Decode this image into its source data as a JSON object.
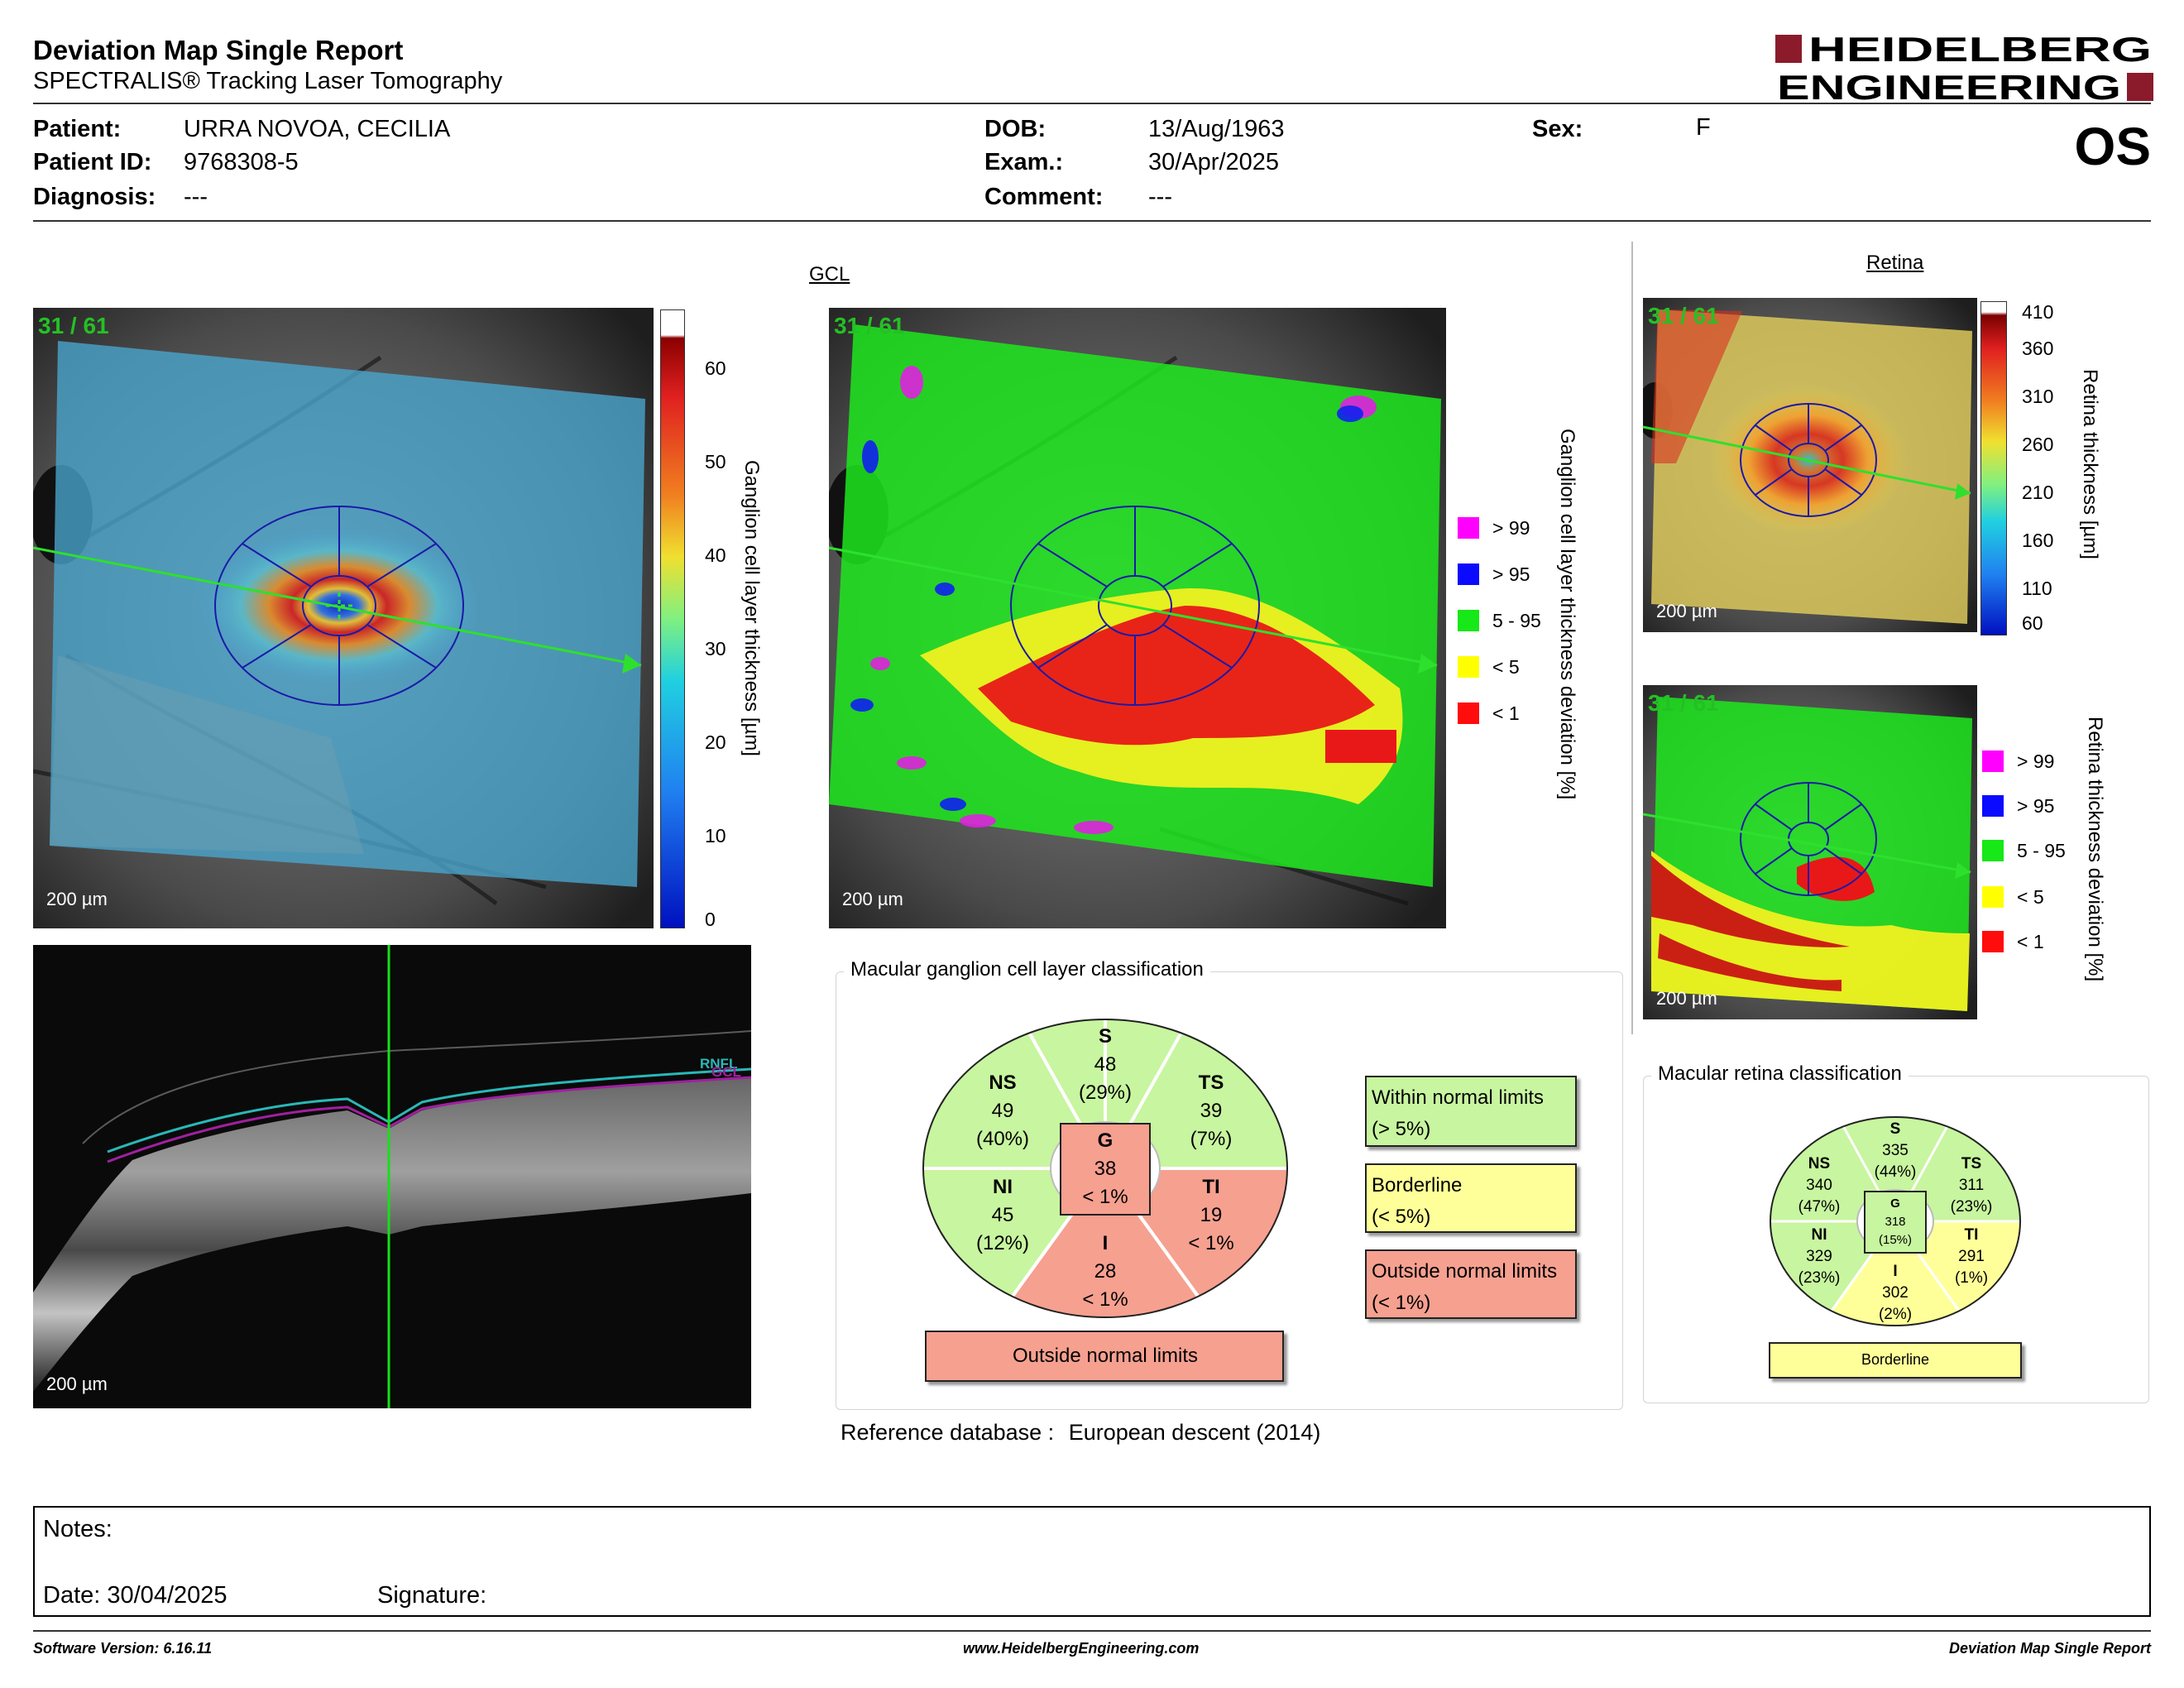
{
  "header": {
    "title": "Deviation Map Single Report",
    "subtitle": "SPECTRALIS® Tracking Laser Tomography",
    "logo_line1": "HEIDELBERG",
    "logo_line2": "ENGINEERING",
    "eye": "OS"
  },
  "patient": {
    "patient_label": "Patient:",
    "patient_value": "URRA NOVOA, CECILIA",
    "id_label": "Patient ID:",
    "id_value": "9768308-5",
    "diag_label": "Diagnosis:",
    "diag_value": "---",
    "dob_label": "DOB:",
    "dob_value": "13/Aug/1963",
    "exam_label": "Exam.:",
    "exam_value": "30/Apr/2025",
    "comment_label": "Comment:",
    "comment_value": "---",
    "sex_label": "Sex:",
    "sex_value": "F"
  },
  "images": {
    "frame_count": "31 / 61",
    "scale": "200 µm",
    "gcl_heading": "GCL",
    "retina_heading": "Retina",
    "bscan_layers": [
      "RNFL",
      "GCL"
    ]
  },
  "colorbars": {
    "gcl_thickness": {
      "label": "Ganglion cell layer thickness [µm]",
      "ticks": [
        "60",
        "50",
        "40",
        "30",
        "20",
        "10",
        "0"
      ]
    },
    "gcl_deviation": {
      "label": "Ganglion cell layer thickness deviation [%]"
    },
    "retina_thickness": {
      "label": "Retina thickness [µm]",
      "ticks": [
        "410",
        "360",
        "310",
        "260",
        "210",
        "160",
        "110",
        "60"
      ]
    },
    "retina_deviation": {
      "label": "Retina thickness deviation [%]"
    }
  },
  "deviation_legend": [
    {
      "label": "> 99",
      "color": "#ff00ff"
    },
    {
      "label": "> 95",
      "color": "#0a0aff"
    },
    {
      "label": "5 - 95",
      "color": "#17e817"
    },
    {
      "label": "< 5",
      "color": "#ffff00"
    },
    {
      "label": "< 1",
      "color": "#ff0c0c"
    }
  ],
  "status_colors": {
    "normal": "#c8f5a0",
    "borderline": "#ffff99",
    "outside": "#f6a090"
  },
  "gcl_classification": {
    "title": "Macular ganglion cell layer classification",
    "sectors": {
      "S": {
        "name": "S",
        "value": "48",
        "pct": "(29%)",
        "status": "normal"
      },
      "NS": {
        "name": "NS",
        "value": "49",
        "pct": "(40%)",
        "status": "normal"
      },
      "TS": {
        "name": "TS",
        "value": "39",
        "pct": "(7%)",
        "status": "normal"
      },
      "NI": {
        "name": "NI",
        "value": "45",
        "pct": "(12%)",
        "status": "normal"
      },
      "TI": {
        "name": "TI",
        "value": "19",
        "pct": "< 1%",
        "status": "outside"
      },
      "I": {
        "name": "I",
        "value": "28",
        "pct": "< 1%",
        "status": "outside"
      },
      "G": {
        "name": "G",
        "value": "38",
        "pct": "< 1%",
        "status": "outside"
      }
    },
    "result": "Outside normal limits",
    "key": [
      {
        "line1": "Within normal limits",
        "line2": "(> 5%)",
        "status": "normal"
      },
      {
        "line1": "Borderline",
        "line2": "(< 5%)",
        "status": "borderline"
      },
      {
        "line1": "Outside normal limits",
        "line2": "(< 1%)",
        "status": "outside"
      }
    ]
  },
  "retina_classification": {
    "title": "Macular retina classification",
    "sectors": {
      "S": {
        "name": "S",
        "value": "335",
        "pct": "(44%)",
        "status": "normal"
      },
      "NS": {
        "name": "NS",
        "value": "340",
        "pct": "(47%)",
        "status": "normal"
      },
      "TS": {
        "name": "TS",
        "value": "311",
        "pct": "(23%)",
        "status": "normal"
      },
      "NI": {
        "name": "NI",
        "value": "329",
        "pct": "(23%)",
        "status": "normal"
      },
      "TI": {
        "name": "TI",
        "value": "291",
        "pct": "(1%)",
        "status": "borderline"
      },
      "I": {
        "name": "I",
        "value": "302",
        "pct": "(2%)",
        "status": "borderline"
      },
      "G": {
        "name": "G",
        "value": "318",
        "pct": "(15%)",
        "status": "normal"
      }
    },
    "result": "Borderline"
  },
  "reference": {
    "label": "Reference database :",
    "value": "European descent (2014)"
  },
  "notes": {
    "label": "Notes:",
    "date": "Date: 30/04/2025",
    "signature": "Signature:"
  },
  "footer": {
    "software": "Software Version: 6.16.11",
    "website": "www.HeidelbergEngineering.com",
    "report": "Deviation Map Single Report"
  }
}
